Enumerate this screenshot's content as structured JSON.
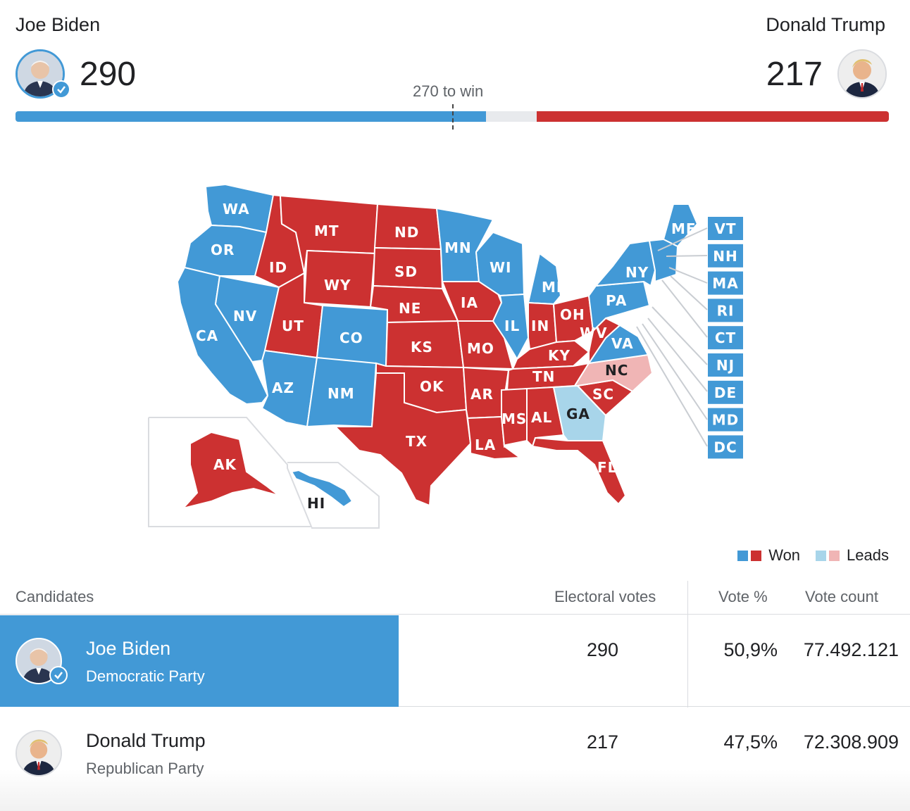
{
  "header": {
    "left_candidate": "Joe Biden",
    "right_candidate": "Donald Trump",
    "left_votes": "290",
    "right_votes": "217",
    "threshold_label": "270 to win"
  },
  "progress": {
    "left_electoral_votes": 290,
    "right_electoral_votes": 217,
    "total_electoral_votes": 538,
    "threshold": 270,
    "left_color": "#4299d6",
    "right_color": "#cc3131",
    "undecided_color": "#e8eaed"
  },
  "map": {
    "colors": {
      "dem_won": "#4299d6",
      "rep_won": "#cc3131",
      "dem_leads": "#a8d5ea",
      "rep_leads": "#f0b5b5"
    },
    "states": [
      {
        "abbr": "WA",
        "status": "dem_won"
      },
      {
        "abbr": "OR",
        "status": "dem_won"
      },
      {
        "abbr": "CA",
        "status": "dem_won"
      },
      {
        "abbr": "NV",
        "status": "dem_won"
      },
      {
        "abbr": "ID",
        "status": "rep_won"
      },
      {
        "abbr": "MT",
        "status": "rep_won"
      },
      {
        "abbr": "WY",
        "status": "rep_won"
      },
      {
        "abbr": "UT",
        "status": "rep_won"
      },
      {
        "abbr": "CO",
        "status": "dem_won"
      },
      {
        "abbr": "AZ",
        "status": "dem_won"
      },
      {
        "abbr": "NM",
        "status": "dem_won"
      },
      {
        "abbr": "ND",
        "status": "rep_won"
      },
      {
        "abbr": "SD",
        "status": "rep_won"
      },
      {
        "abbr": "NE",
        "status": "rep_won"
      },
      {
        "abbr": "KS",
        "status": "rep_won"
      },
      {
        "abbr": "OK",
        "status": "rep_won"
      },
      {
        "abbr": "TX",
        "status": "rep_won"
      },
      {
        "abbr": "MN",
        "status": "dem_won"
      },
      {
        "abbr": "IA",
        "status": "rep_won"
      },
      {
        "abbr": "MO",
        "status": "rep_won"
      },
      {
        "abbr": "AR",
        "status": "rep_won"
      },
      {
        "abbr": "LA",
        "status": "rep_won"
      },
      {
        "abbr": "WI",
        "status": "dem_won"
      },
      {
        "abbr": "IL",
        "status": "dem_won"
      },
      {
        "abbr": "MI",
        "status": "dem_won"
      },
      {
        "abbr": "IN",
        "status": "rep_won"
      },
      {
        "abbr": "OH",
        "status": "rep_won"
      },
      {
        "abbr": "KY",
        "status": "rep_won"
      },
      {
        "abbr": "TN",
        "status": "rep_won"
      },
      {
        "abbr": "MS",
        "status": "rep_won"
      },
      {
        "abbr": "AL",
        "status": "rep_won"
      },
      {
        "abbr": "GA",
        "status": "dem_leads"
      },
      {
        "abbr": "FL",
        "status": "rep_won"
      },
      {
        "abbr": "SC",
        "status": "rep_won"
      },
      {
        "abbr": "NC",
        "status": "rep_leads"
      },
      {
        "abbr": "VA",
        "status": "dem_won"
      },
      {
        "abbr": "WV",
        "status": "rep_won"
      },
      {
        "abbr": "PA",
        "status": "dem_won"
      },
      {
        "abbr": "NY",
        "status": "dem_won"
      },
      {
        "abbr": "ME",
        "status": "dem_won"
      },
      {
        "abbr": "AK",
        "status": "rep_won"
      },
      {
        "abbr": "HI",
        "status": "dem_won"
      }
    ],
    "small_states": [
      "VT",
      "NH",
      "MA",
      "RI",
      "CT",
      "NJ",
      "DE",
      "MD",
      "DC"
    ]
  },
  "legend": {
    "won_label": "Won",
    "leads_label": "Leads"
  },
  "table": {
    "headers": {
      "candidates": "Candidates",
      "electoral_votes": "Electoral votes",
      "vote_pct": "Vote %",
      "vote_count": "Vote count"
    },
    "rows": [
      {
        "name": "Joe Biden",
        "party": "Democratic Party",
        "electoral_votes": "290",
        "vote_pct": "50,9%",
        "vote_count": "77.492.121",
        "winner": true
      },
      {
        "name": "Donald Trump",
        "party": "Republican Party",
        "electoral_votes": "217",
        "vote_pct": "47,5%",
        "vote_count": "72.308.909",
        "winner": false
      }
    ]
  }
}
